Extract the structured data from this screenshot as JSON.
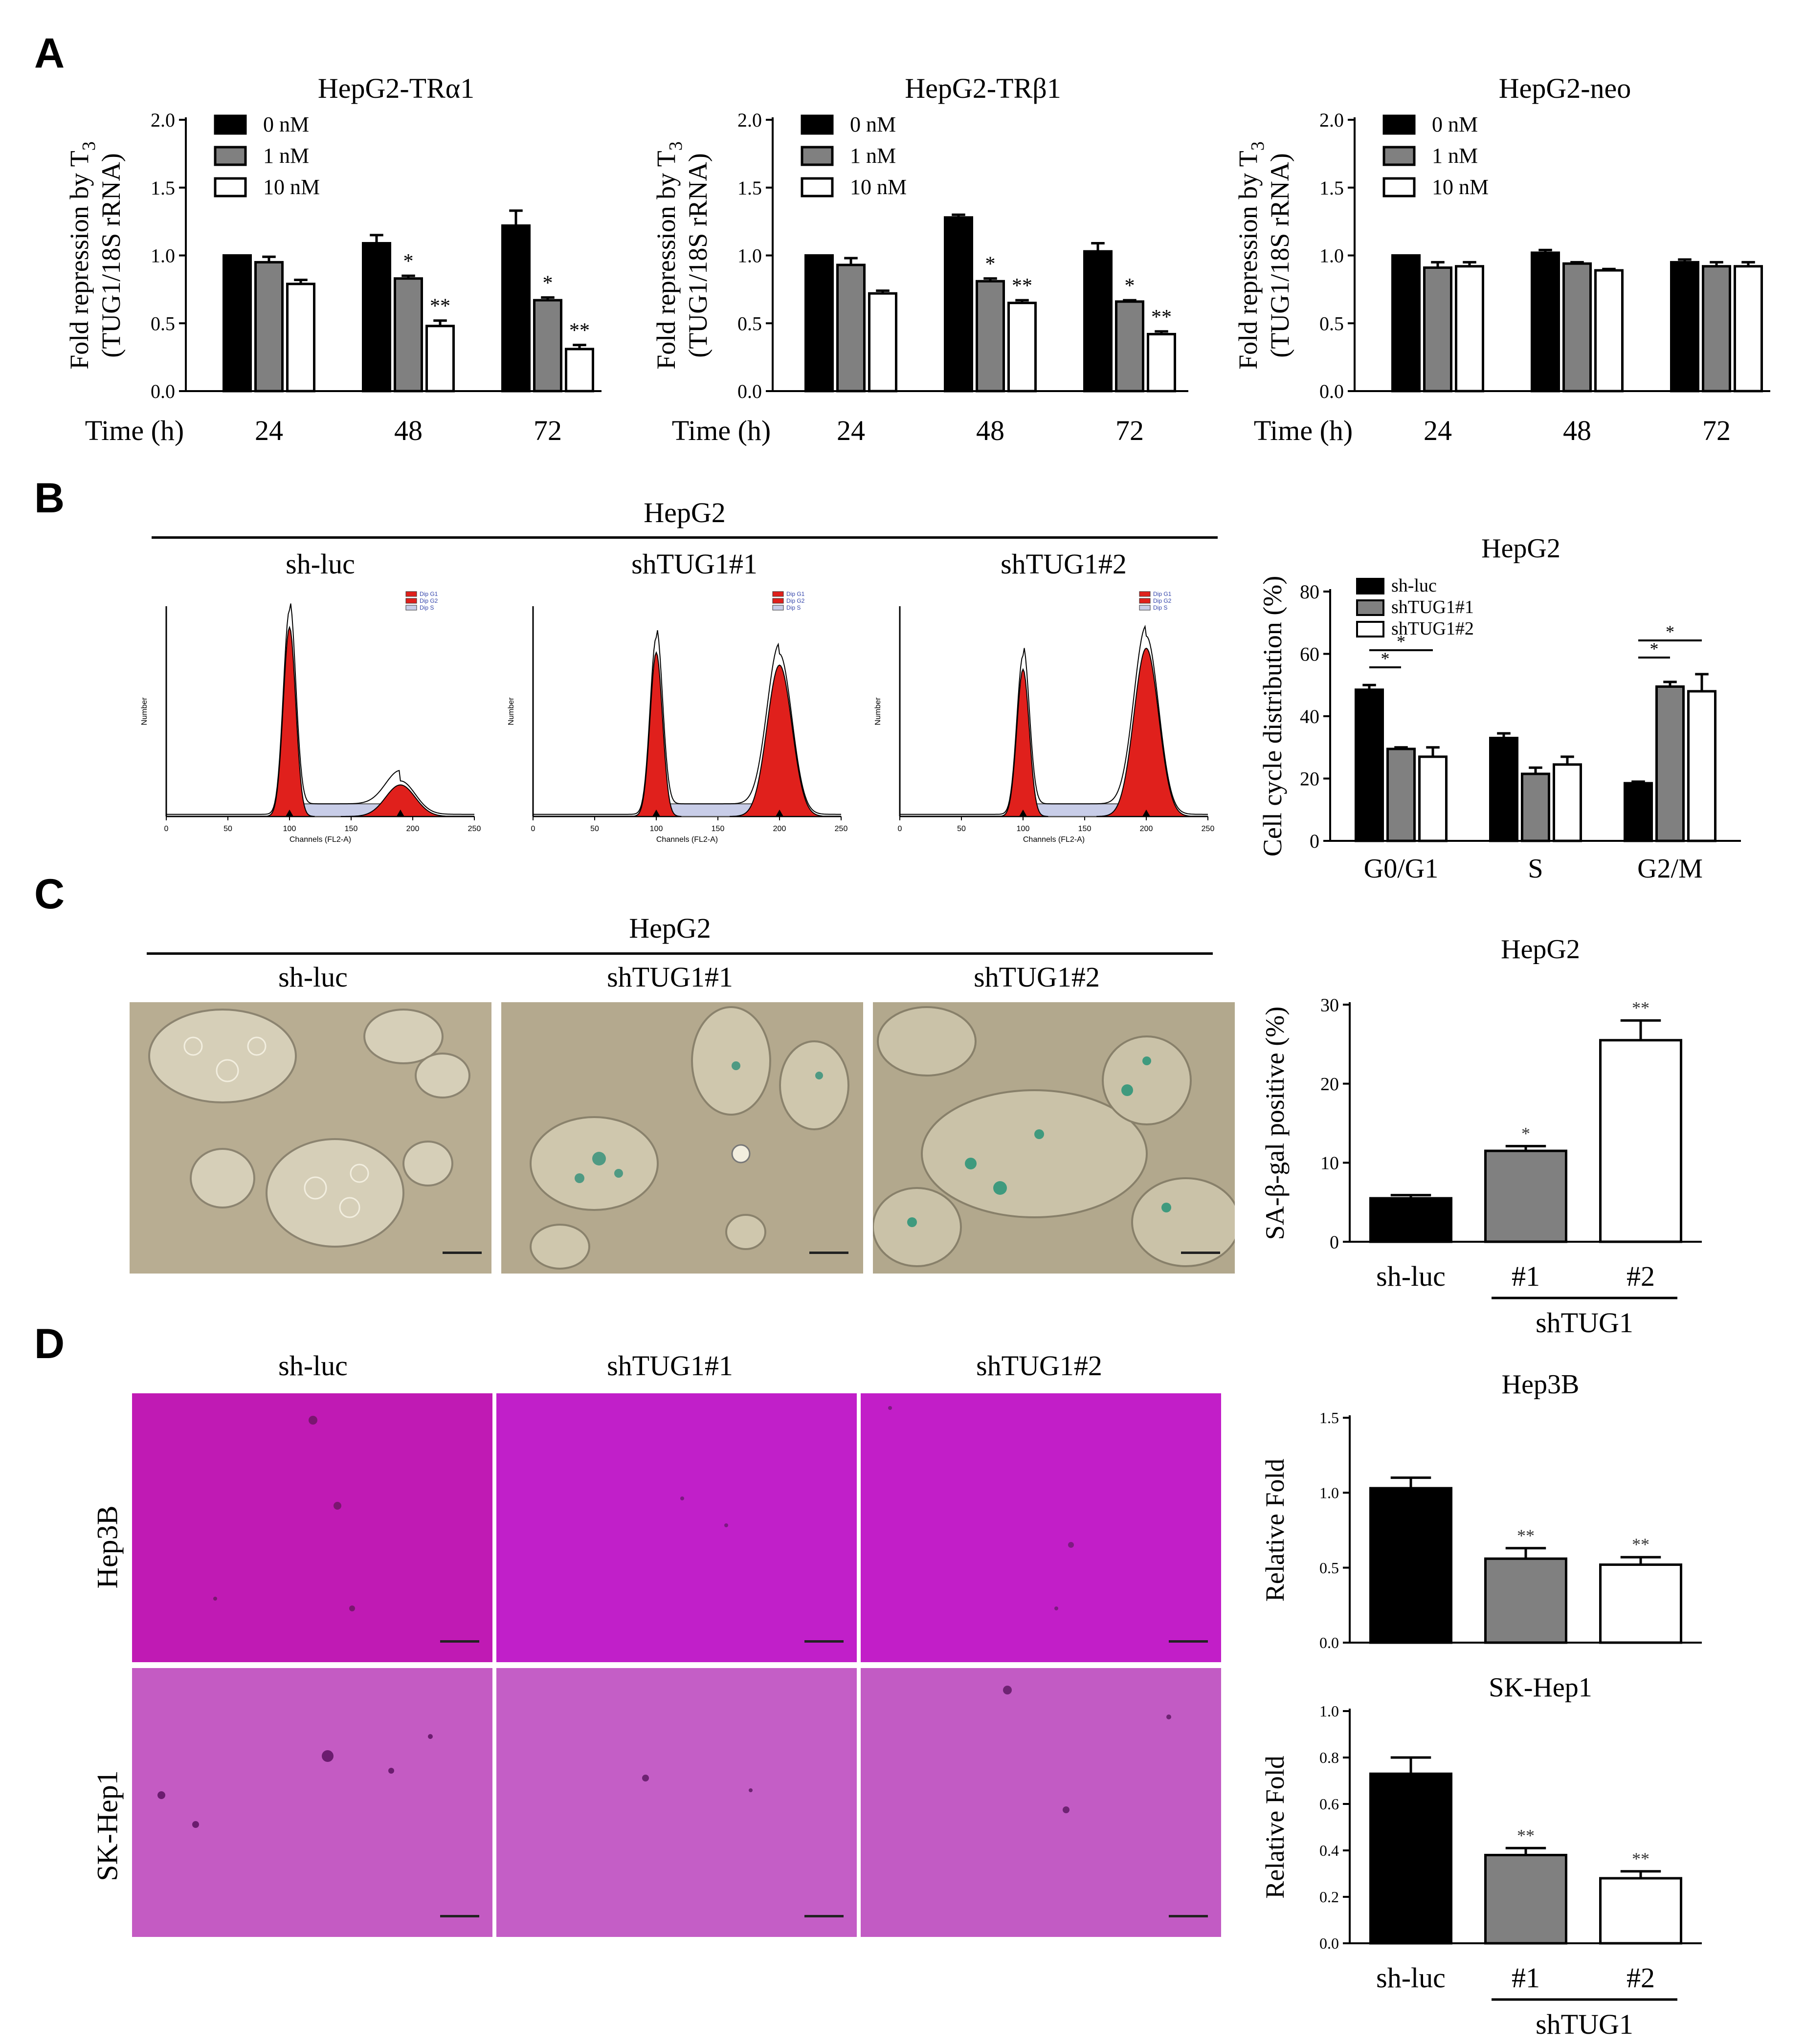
{
  "panels": {
    "A": {
      "label": "A",
      "charts": [
        {
          "title": "HepG2-TRα1",
          "legend": [
            "0 nM",
            "1 nM",
            "10 nM"
          ]
        },
        {
          "title": "HepG2-TRβ1",
          "legend": [
            "0 nM",
            "1 nM",
            "10 nM"
          ]
        },
        {
          "title": "HepG2-neo",
          "legend": [
            "0 nM",
            "1 nM",
            "10 nM"
          ]
        }
      ],
      "ylabel_line1": "Fold repression by T",
      "ylabel_sub": "3",
      "ylabel_line2": "(TUG1/18S rRNA)",
      "xlabel": "Time (h)",
      "time_points": [
        "24",
        "48",
        "72"
      ]
    },
    "B": {
      "label": "B",
      "group": "HepG2",
      "conditions": [
        "sh-luc",
        "shTUG1#1",
        "shTUG1#2"
      ],
      "histogram_xlabel": "Channels (FL2-A)",
      "histogram_ylabel": "Number",
      "histogram_legend": [
        "Dip G1",
        "Dip G2",
        "Dip S"
      ],
      "histogram_xticks": [
        "0",
        "50",
        "100",
        "150",
        "200",
        "250"
      ]
    },
    "C": {
      "label": "C",
      "group": "HepG2",
      "conditions": [
        "sh-luc",
        "shTUG1#1",
        "shTUG1#2"
      ]
    },
    "D": {
      "label": "D",
      "conditions": [
        "sh-luc",
        "shTUG1#1",
        "shTUG1#2"
      ],
      "rows": [
        "Hep3B",
        "SK-Hep1"
      ]
    }
  },
  "colors": {
    "black": "#000000",
    "gray": "#808080",
    "white": "#ffffff",
    "peak_red": "#e0201c",
    "photo_c": "#b8ad92",
    "photo_hep3b": "#c01ab4",
    "photo_skhep1": "#c45bc3"
  },
  "chart_data": [
    {
      "id": "A1",
      "type": "bar",
      "title": "HepG2-TRα1",
      "categories": [
        "24",
        "48",
        "72"
      ],
      "series": [
        {
          "name": "0 nM",
          "values": [
            1.0,
            1.09,
            1.22
          ],
          "errors": [
            0.0,
            0.06,
            0.11
          ]
        },
        {
          "name": "1 nM",
          "values": [
            0.95,
            0.83,
            0.67
          ],
          "errors": [
            0.04,
            0.02,
            0.02
          ]
        },
        {
          "name": "10 nM",
          "values": [
            0.79,
            0.48,
            0.31
          ],
          "errors": [
            0.03,
            0.04,
            0.03
          ]
        }
      ],
      "annotations": [
        [
          "",
          "",
          ""
        ],
        [
          "",
          "*",
          "*"
        ],
        [
          "",
          "**",
          "**"
        ]
      ],
      "xlabel": "Time (h)",
      "ylabel": "Fold repression by T3 (TUG1/18S rRNA)",
      "ylim": [
        0,
        2.0
      ],
      "yticks": [
        "0.0",
        "0.5",
        "1.0",
        "1.5",
        "2.0"
      ]
    },
    {
      "id": "A2",
      "type": "bar",
      "title": "HepG2-TRβ1",
      "categories": [
        "24",
        "48",
        "72"
      ],
      "series": [
        {
          "name": "0 nM",
          "values": [
            1.0,
            1.28,
            1.03
          ],
          "errors": [
            0.0,
            0.02,
            0.06
          ]
        },
        {
          "name": "1 nM",
          "values": [
            0.93,
            0.81,
            0.66
          ],
          "errors": [
            0.05,
            0.02,
            0.01
          ]
        },
        {
          "name": "10 nM",
          "values": [
            0.72,
            0.65,
            0.42
          ],
          "errors": [
            0.02,
            0.02,
            0.02
          ]
        }
      ],
      "annotations": [
        [
          "",
          "",
          ""
        ],
        [
          "",
          "*",
          "*"
        ],
        [
          "",
          "**",
          "**"
        ]
      ],
      "xlabel": "Time (h)",
      "ylabel": "Fold repression by T3 (TUG1/18S rRNA)",
      "ylim": [
        0,
        2.0
      ],
      "yticks": [
        "0.0",
        "0.5",
        "1.0",
        "1.5",
        "2.0"
      ]
    },
    {
      "id": "A3",
      "type": "bar",
      "title": "HepG2-neo",
      "categories": [
        "24",
        "48",
        "72"
      ],
      "series": [
        {
          "name": "0 nM",
          "values": [
            1.0,
            1.02,
            0.95
          ],
          "errors": [
            0.0,
            0.02,
            0.02
          ]
        },
        {
          "name": "1 nM",
          "values": [
            0.91,
            0.94,
            0.92
          ],
          "errors": [
            0.04,
            0.01,
            0.03
          ]
        },
        {
          "name": "10 nM",
          "values": [
            0.92,
            0.89,
            0.92
          ],
          "errors": [
            0.03,
            0.01,
            0.03
          ]
        }
      ],
      "annotations": [
        [
          "",
          "",
          ""
        ],
        [
          "",
          "",
          ""
        ],
        [
          "",
          "",
          ""
        ]
      ],
      "xlabel": "Time (h)",
      "ylabel": "Fold repression by T3 (TUG1/18S rRNA)",
      "ylim": [
        0,
        2.0
      ],
      "yticks": [
        "0.0",
        "0.5",
        "1.0",
        "1.5",
        "2.0"
      ]
    },
    {
      "id": "B",
      "type": "bar",
      "title": "HepG2",
      "categories": [
        "G0/G1",
        "S",
        "G2/M"
      ],
      "series": [
        {
          "name": "sh-luc",
          "values": [
            48.5,
            33.0,
            18.5
          ],
          "errors": [
            1.5,
            1.5,
            0.5
          ]
        },
        {
          "name": "shTUG1#1",
          "values": [
            29.5,
            21.5,
            49.5
          ],
          "errors": [
            0.5,
            2.0,
            1.5
          ]
        },
        {
          "name": "shTUG1#2",
          "values": [
            27.0,
            24.5,
            48.0
          ],
          "errors": [
            3.0,
            2.5,
            5.5
          ]
        }
      ],
      "brackets": [
        [
          "*",
          "*"
        ],
        [
          "*",
          "*"
        ]
      ],
      "ylabel": "Cell cycle distribution (%)",
      "ylim": [
        0,
        80
      ],
      "yticks": [
        "0",
        "20",
        "40",
        "60",
        "80"
      ]
    },
    {
      "id": "C",
      "type": "bar",
      "title": "HepG2",
      "categories": [
        "sh-luc",
        "#1",
        "#2"
      ],
      "group_label": "shTUG1",
      "values": [
        5.5,
        11.5,
        25.5
      ],
      "errors": [
        0.4,
        0.6,
        2.5
      ],
      "annotations": [
        "",
        "*",
        "**"
      ],
      "ylabel": "SA-β-gal positive (%)",
      "ylim": [
        0,
        30
      ],
      "yticks": [
        "0",
        "10",
        "20",
        "30"
      ]
    },
    {
      "id": "D1",
      "type": "bar",
      "title": "Hep3B",
      "categories": [
        "sh-luc",
        "#1",
        "#2"
      ],
      "values": [
        1.03,
        0.56,
        0.52
      ],
      "errors": [
        0.07,
        0.07,
        0.05
      ],
      "annotations": [
        "",
        "**",
        "**"
      ],
      "ylabel": "Relative Fold",
      "ylim": [
        0,
        1.5
      ],
      "yticks": [
        "0.0",
        "0.5",
        "1.0",
        "1.5"
      ]
    },
    {
      "id": "D2",
      "type": "bar",
      "title": "SK-Hep1",
      "categories": [
        "sh-luc",
        "#1",
        "#2"
      ],
      "group_label": "shTUG1",
      "values": [
        0.73,
        0.38,
        0.28
      ],
      "errors": [
        0.07,
        0.03,
        0.03
      ],
      "annotations": [
        "",
        "**",
        "**"
      ],
      "ylabel": "Relative Fold",
      "ylim": [
        0,
        1.0
      ],
      "yticks": [
        "0.0",
        "0.2",
        "0.4",
        "0.6",
        "0.8",
        "1.0"
      ]
    }
  ]
}
